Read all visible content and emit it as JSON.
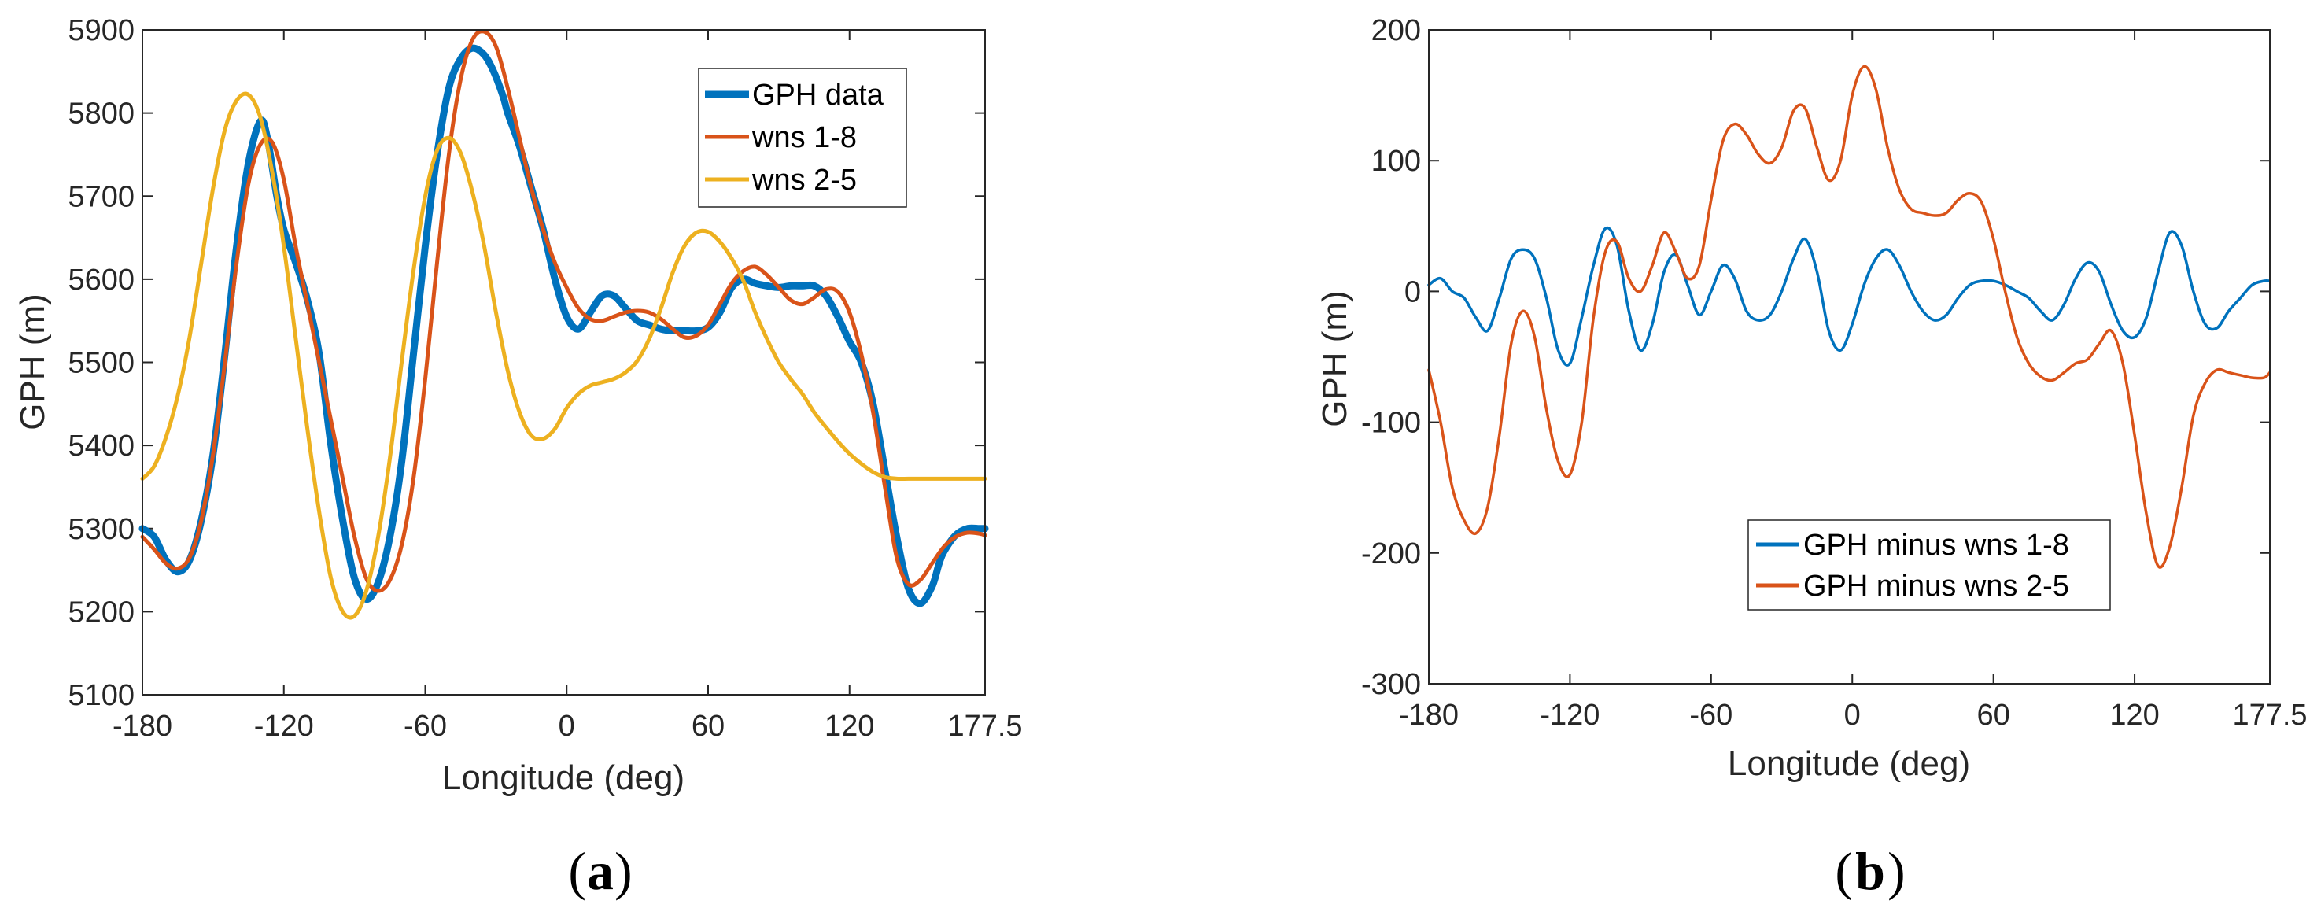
{
  "chart_data": [
    {
      "type": "line",
      "panel_label": "a",
      "title": "",
      "xlabel": "Longitude (deg)",
      "ylabel": "GPH (m)",
      "xlim": [
        -180,
        177.5
      ],
      "ylim": [
        5100,
        5900
      ],
      "xticks": [
        -180,
        -120,
        -60,
        0,
        60,
        120,
        177.5
      ],
      "yticks": [
        5100,
        5200,
        5300,
        5400,
        5500,
        5600,
        5700,
        5800,
        5900
      ],
      "legend_position": "top-right",
      "series": [
        {
          "name": "GPH data",
          "color": "#0072BD",
          "width": "thick",
          "x": [
            -180,
            -175,
            -170,
            -165,
            -160,
            -155,
            -150,
            -145,
            -140,
            -135,
            -130,
            -127,
            -123,
            -120,
            -115,
            -110,
            -105,
            -100,
            -95,
            -90,
            -85,
            -80,
            -75,
            -70,
            -65,
            -60,
            -55,
            -50,
            -45,
            -40,
            -35,
            -31,
            -27,
            -25,
            -20,
            -15,
            -10,
            -5,
            0,
            5,
            10,
            15,
            20,
            25,
            30,
            35,
            40,
            45,
            50,
            55,
            60,
            65,
            70,
            75,
            80,
            85,
            90,
            95,
            100,
            105,
            110,
            115,
            120,
            125,
            130,
            135,
            140,
            145,
            150,
            155,
            158,
            160,
            165,
            170,
            175,
            177.5
          ],
          "y": [
            5300,
            5290,
            5262,
            5248,
            5262,
            5310,
            5390,
            5510,
            5640,
            5740,
            5790,
            5770,
            5700,
            5660,
            5620,
            5575,
            5510,
            5400,
            5310,
            5240,
            5215,
            5235,
            5290,
            5380,
            5510,
            5640,
            5750,
            5830,
            5865,
            5878,
            5870,
            5850,
            5820,
            5800,
            5760,
            5710,
            5660,
            5600,
            5555,
            5540,
            5560,
            5580,
            5580,
            5565,
            5550,
            5545,
            5540,
            5538,
            5538,
            5538,
            5542,
            5560,
            5590,
            5600,
            5595,
            5592,
            5590,
            5592,
            5592,
            5592,
            5580,
            5555,
            5525,
            5500,
            5450,
            5370,
            5290,
            5228,
            5210,
            5230,
            5258,
            5272,
            5292,
            5300,
            5300,
            5300
          ]
        },
        {
          "name": "wns 1-8",
          "color": "#D95319",
          "width": "normal",
          "x": [
            -180,
            -175,
            -170,
            -165,
            -160,
            -155,
            -150,
            -145,
            -140,
            -135,
            -130,
            -125,
            -120,
            -115,
            -110,
            -105,
            -100,
            -95,
            -90,
            -85,
            -80,
            -75,
            -70,
            -65,
            -60,
            -55,
            -50,
            -45,
            -40,
            -35,
            -30,
            -25,
            -20,
            -15,
            -10,
            -5,
            0,
            5,
            10,
            15,
            20,
            25,
            30,
            35,
            40,
            45,
            50,
            55,
            60,
            65,
            70,
            75,
            80,
            85,
            90,
            95,
            100,
            105,
            110,
            115,
            120,
            125,
            130,
            135,
            140,
            145,
            150,
            155,
            160,
            165,
            170,
            175,
            177.5
          ],
          "y": [
            5290,
            5275,
            5258,
            5252,
            5265,
            5310,
            5390,
            5500,
            5620,
            5715,
            5762,
            5765,
            5720,
            5640,
            5570,
            5500,
            5430,
            5360,
            5290,
            5240,
            5225,
            5238,
            5280,
            5360,
            5480,
            5620,
            5750,
            5840,
            5888,
            5898,
            5880,
            5830,
            5770,
            5710,
            5660,
            5620,
            5590,
            5565,
            5552,
            5550,
            5555,
            5560,
            5562,
            5560,
            5552,
            5540,
            5530,
            5532,
            5545,
            5570,
            5595,
            5610,
            5615,
            5605,
            5590,
            5575,
            5570,
            5578,
            5588,
            5585,
            5560,
            5510,
            5440,
            5350,
            5265,
            5233,
            5238,
            5258,
            5278,
            5290,
            5295,
            5294,
            5292
          ]
        },
        {
          "name": "wns 2-5",
          "color": "#EDB120",
          "width": "normal",
          "x": [
            -180,
            -175,
            -170,
            -165,
            -160,
            -155,
            -150,
            -145,
            -140,
            -135,
            -130,
            -125,
            -120,
            -115,
            -110,
            -105,
            -100,
            -95,
            -90,
            -85,
            -80,
            -75,
            -70,
            -65,
            -60,
            -55,
            -50,
            -45,
            -40,
            -35,
            -30,
            -25,
            -20,
            -15,
            -10,
            -5,
            0,
            5,
            10,
            15,
            20,
            25,
            30,
            35,
            40,
            45,
            50,
            55,
            60,
            65,
            70,
            75,
            80,
            85,
            90,
            95,
            100,
            105,
            110,
            115,
            120,
            125,
            130,
            135,
            140,
            145,
            150,
            155,
            160,
            165,
            170,
            175,
            177.5
          ],
          "y": [
            5360,
            5375,
            5410,
            5460,
            5530,
            5620,
            5710,
            5780,
            5815,
            5822,
            5795,
            5730,
            5640,
            5530,
            5420,
            5320,
            5240,
            5200,
            5195,
            5225,
            5290,
            5385,
            5500,
            5610,
            5700,
            5755,
            5770,
            5752,
            5705,
            5640,
            5560,
            5490,
            5440,
            5412,
            5408,
            5420,
            5445,
            5462,
            5472,
            5476,
            5480,
            5488,
            5502,
            5528,
            5565,
            5608,
            5640,
            5656,
            5657,
            5645,
            5625,
            5598,
            5560,
            5528,
            5500,
            5480,
            5462,
            5440,
            5422,
            5405,
            5390,
            5378,
            5368,
            5362,
            5360,
            5360,
            5360,
            5360,
            5360,
            5360,
            5360,
            5360,
            5360
          ]
        }
      ]
    },
    {
      "type": "line",
      "panel_label": "b",
      "title": "",
      "xlabel": "Longitude (deg)",
      "ylabel": "GPH (m)",
      "xlim": [
        -180,
        177.5
      ],
      "ylim": [
        -300,
        200
      ],
      "xticks": [
        -180,
        -120,
        -60,
        0,
        60,
        120,
        177.5
      ],
      "yticks": [
        -300,
        -200,
        -100,
        0,
        100,
        200
      ],
      "legend_position": "bottom-center",
      "series": [
        {
          "name": "GPH minus wns 1-8",
          "color": "#0072BD",
          "width": "normal",
          "x": [
            -180,
            -175,
            -170,
            -165,
            -160,
            -155,
            -150,
            -145,
            -140,
            -135,
            -130,
            -125,
            -120,
            -115,
            -110,
            -105,
            -100,
            -95,
            -90,
            -85,
            -80,
            -75,
            -70,
            -65,
            -60,
            -55,
            -50,
            -45,
            -40,
            -35,
            -30,
            -25,
            -20,
            -15,
            -10,
            -5,
            0,
            5,
            10,
            15,
            20,
            25,
            30,
            35,
            40,
            45,
            50,
            55,
            60,
            65,
            70,
            75,
            80,
            85,
            90,
            95,
            100,
            105,
            110,
            115,
            120,
            125,
            130,
            135,
            140,
            145,
            150,
            155,
            160,
            165,
            170,
            175,
            177.5
          ],
          "y": [
            5,
            10,
            0,
            -5,
            -20,
            -30,
            -5,
            25,
            32,
            25,
            -5,
            -45,
            -55,
            -20,
            20,
            48,
            35,
            -15,
            -45,
            -25,
            15,
            28,
            5,
            -18,
            0,
            20,
            10,
            -15,
            -22,
            -18,
            0,
            25,
            40,
            15,
            -30,
            -45,
            -25,
            5,
            25,
            32,
            20,
            0,
            -15,
            -22,
            -18,
            -5,
            5,
            8,
            8,
            5,
            0,
            -5,
            -15,
            -22,
            -10,
            10,
            22,
            15,
            -10,
            -30,
            -35,
            -20,
            15,
            45,
            35,
            0,
            -25,
            -28,
            -15,
            -5,
            5,
            8,
            8
          ]
        },
        {
          "name": "GPH minus wns 2-5",
          "color": "#D95319",
          "width": "normal",
          "x": [
            -180,
            -175,
            -170,
            -165,
            -160,
            -155,
            -150,
            -145,
            -140,
            -135,
            -130,
            -125,
            -120,
            -115,
            -110,
            -105,
            -100,
            -95,
            -90,
            -85,
            -80,
            -75,
            -70,
            -65,
            -60,
            -55,
            -50,
            -45,
            -40,
            -35,
            -30,
            -25,
            -20,
            -15,
            -10,
            -5,
            0,
            5,
            10,
            15,
            20,
            25,
            30,
            35,
            40,
            45,
            50,
            55,
            60,
            65,
            70,
            75,
            80,
            85,
            90,
            95,
            100,
            105,
            110,
            115,
            120,
            125,
            130,
            135,
            140,
            145,
            150,
            155,
            160,
            165,
            170,
            175,
            177.5
          ],
          "y": [
            -60,
            -100,
            -150,
            -175,
            -185,
            -165,
            -110,
            -40,
            -15,
            -35,
            -90,
            -130,
            -140,
            -100,
            -20,
            30,
            38,
            10,
            0,
            20,
            45,
            30,
            10,
            20,
            70,
            115,
            128,
            120,
            105,
            98,
            110,
            138,
            140,
            110,
            85,
            100,
            150,
            172,
            155,
            110,
            78,
            63,
            60,
            58,
            60,
            70,
            75,
            68,
            40,
            0,
            -35,
            -55,
            -65,
            -68,
            -62,
            -55,
            -52,
            -40,
            -30,
            -55,
            -110,
            -170,
            -210,
            -195,
            -150,
            -95,
            -70,
            -60,
            -62,
            -64,
            -66,
            -66,
            -62
          ]
        }
      ]
    }
  ]
}
